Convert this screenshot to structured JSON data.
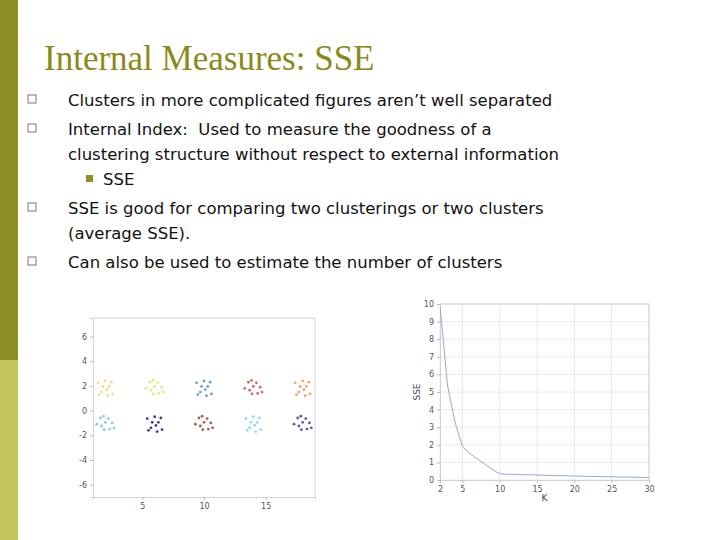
{
  "slide": {
    "title": "Internal Measures: SSE",
    "bullets": [
      {
        "lines": [
          "Clusters in more complicated figures aren’t well separated"
        ]
      },
      {
        "lines": [
          "Internal Index:  Used to measure the goodness of a",
          "clustering structure without respect to external information"
        ],
        "sub": [
          {
            "lines": [
              "SSE"
            ]
          }
        ]
      },
      {
        "lines": [
          "SSE is good for comparing two clusterings or two clusters",
          "(average SSE)."
        ]
      },
      {
        "lines": [
          "Can also be used to estimate the number of clusters"
        ]
      }
    ]
  },
  "chart_data": [
    {
      "type": "scatter",
      "marker": "dot",
      "xlim": [
        1,
        19
      ],
      "xticks": [
        5,
        10,
        15
      ],
      "ylim": [
        -7,
        7.5
      ],
      "yticks": [
        -6,
        -4,
        -2,
        0,
        2,
        4,
        6
      ],
      "series": [
        {
          "color": "#f2de86",
          "x": [
            1.4,
            1.7,
            2.0,
            2.3,
            2.6,
            1.8,
            2.2,
            2.5,
            1.5,
            2.1
          ],
          "values": [
            2.25,
            1.5,
            2.4,
            1.95,
            1.35,
            1.95,
            1.2,
            2.3,
            1.3,
            1.7
          ]
        },
        {
          "color": "#e3ea78",
          "x": [
            5.3,
            5.6,
            5.9,
            6.25,
            6.55,
            6.0,
            6.35,
            5.7,
            6.7,
            5.85
          ],
          "values": [
            1.8,
            2.3,
            1.35,
            2.25,
            1.9,
            1.95,
            1.4,
            1.65,
            1.5,
            2.45
          ]
        },
        {
          "color": "#6c9ed6",
          "x": [
            9.4,
            9.7,
            10.0,
            10.3,
            10.6,
            9.8,
            10.2,
            10.5,
            9.5,
            10.1
          ],
          "values": [
            2.25,
            1.5,
            2.4,
            1.95,
            1.35,
            1.95,
            1.2,
            2.3,
            1.3,
            1.7
          ]
        },
        {
          "color": "#d06666",
          "x": [
            13.3,
            13.6,
            13.9,
            14.25,
            14.55,
            14.0,
            14.35,
            13.7,
            14.7,
            13.85
          ],
          "values": [
            1.8,
            2.3,
            1.35,
            2.25,
            1.9,
            1.95,
            1.4,
            1.65,
            1.5,
            2.45
          ]
        },
        {
          "color": "#f0a468",
          "x": [
            17.4,
            17.7,
            18.0,
            18.3,
            18.6,
            17.8,
            18.2,
            18.5,
            17.5,
            18.1
          ],
          "values": [
            2.25,
            1.5,
            2.4,
            1.95,
            1.35,
            1.95,
            1.2,
            2.3,
            1.3,
            1.7
          ]
        },
        {
          "color": "#7ccdec",
          "x": [
            1.3,
            1.6,
            1.9,
            2.25,
            2.55,
            2.0,
            2.35,
            1.7,
            2.7,
            1.85
          ],
          "values": [
            -1.1,
            -0.6,
            -1.55,
            -0.65,
            -1.0,
            -0.95,
            -1.5,
            -1.25,
            -1.4,
            -0.45
          ]
        },
        {
          "color": "#3a3f9a",
          "x": [
            5.4,
            5.7,
            6.0,
            6.3,
            6.6,
            5.8,
            6.2,
            6.5,
            5.5,
            6.1
          ],
          "values": [
            -0.65,
            -1.4,
            -0.5,
            -0.95,
            -1.55,
            -0.95,
            -1.7,
            -0.6,
            -1.6,
            -1.2
          ]
        },
        {
          "color": "#b05858",
          "x": [
            9.3,
            9.6,
            9.9,
            10.25,
            10.55,
            10.0,
            10.35,
            9.7,
            10.7,
            9.85
          ],
          "values": [
            -1.1,
            -0.6,
            -1.55,
            -0.65,
            -1.0,
            -0.95,
            -1.5,
            -1.25,
            -1.4,
            -0.45
          ]
        },
        {
          "color": "#86dcee",
          "x": [
            13.4,
            13.7,
            14.0,
            14.3,
            14.6,
            13.8,
            14.2,
            14.5,
            13.5,
            14.1
          ],
          "values": [
            -0.65,
            -1.4,
            -0.5,
            -0.95,
            -1.55,
            -0.95,
            -1.7,
            -0.6,
            -1.6,
            -1.2
          ]
        },
        {
          "color": "#5a5aa8",
          "x": [
            17.3,
            17.6,
            17.9,
            18.25,
            18.55,
            18.0,
            18.35,
            17.7,
            18.7,
            17.85
          ],
          "values": [
            -1.1,
            -0.6,
            -1.55,
            -0.65,
            -1.0,
            -0.95,
            -1.5,
            -1.25,
            -1.4,
            -0.45
          ]
        }
      ]
    },
    {
      "type": "line",
      "xlabel": "K",
      "ylabel": "SSE",
      "grid": true,
      "xlim": [
        2,
        30
      ],
      "xticks": [
        2,
        5,
        10,
        15,
        20,
        25,
        30
      ],
      "ylim": [
        0,
        10
      ],
      "yticks": [
        0,
        1,
        2,
        3,
        4,
        5,
        6,
        7,
        8,
        9,
        10
      ],
      "x": [
        2,
        3,
        4,
        5,
        6,
        7,
        8,
        9,
        10,
        11,
        12,
        13,
        14,
        15,
        16,
        17,
        18,
        19,
        20,
        21,
        22,
        23,
        24,
        25,
        26,
        27,
        28,
        29,
        30
      ],
      "series": [
        {
          "color": "#98a6d8",
          "values": [
            9.9,
            5.4,
            3.3,
            1.9,
            1.5,
            1.2,
            0.9,
            0.6,
            0.35,
            0.33,
            0.32,
            0.3,
            0.3,
            0.28,
            0.27,
            0.25,
            0.25,
            0.24,
            0.22,
            0.22,
            0.2,
            0.2,
            0.19,
            0.18,
            0.17,
            0.17,
            0.16,
            0.15,
            0.14
          ]
        }
      ]
    }
  ]
}
